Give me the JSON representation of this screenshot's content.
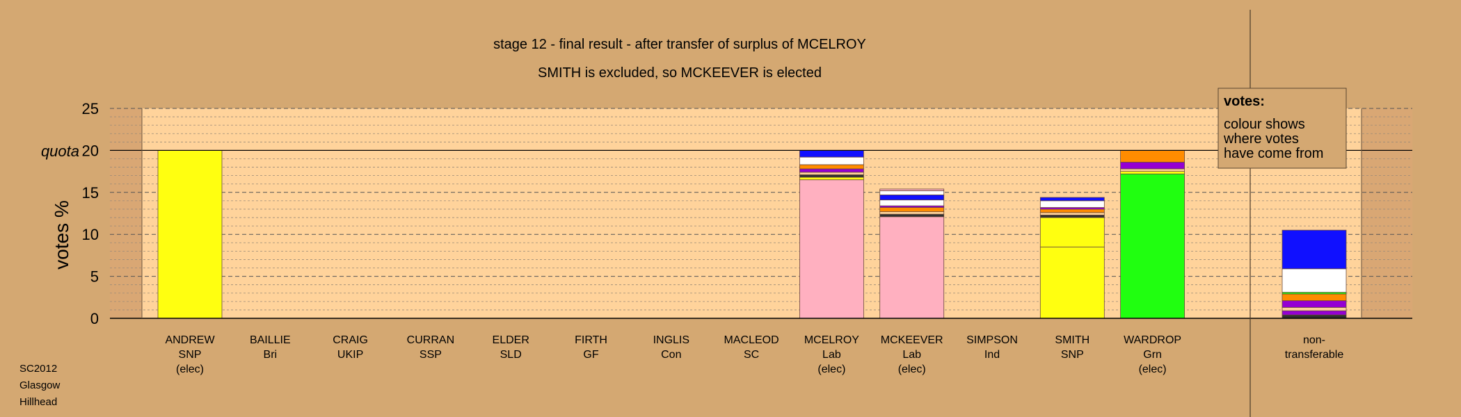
{
  "chart_data": {
    "type": "bar",
    "stacked": true,
    "title": "stage 12 - final result - after transfer of surplus of MCELROY",
    "subtitle": "SMITH is excluded, so MCKEEVER is elected",
    "ylabel": "votes %",
    "ylim": [
      0,
      25
    ],
    "yticks": [
      "0",
      "5",
      "10",
      "15",
      "20",
      "25"
    ],
    "quota_label": "quota",
    "quota_value": 20,
    "grid": true,
    "colors": {
      "background": "#d4a872",
      "plot_area": "#ffd39b",
      "Lab": "#ffb0c0",
      "SNP": "#ffff10",
      "Grn": "#20ff10",
      "Con": "#1010ff",
      "UKIP": "#ffffff",
      "SSP": "#ff8c00",
      "GF": "#9400d3",
      "SC": "#303030",
      "Bri": "#ffffff",
      "SLD": "#ffd39b",
      "Ind": "#c0c0c0"
    },
    "categories": [
      {
        "name": "ANDREW",
        "party": "SNP",
        "status": "(elec)",
        "segments": [
          {
            "from": "SNP",
            "value": 20.0
          }
        ]
      },
      {
        "name": "BAILLIE",
        "party": "Bri",
        "status": "",
        "segments": []
      },
      {
        "name": "CRAIG",
        "party": "UKIP",
        "status": "",
        "segments": []
      },
      {
        "name": "CURRAN",
        "party": "SSP",
        "status": "",
        "segments": []
      },
      {
        "name": "ELDER",
        "party": "SLD",
        "status": "",
        "segments": []
      },
      {
        "name": "FIRTH",
        "party": "GF",
        "status": "",
        "segments": []
      },
      {
        "name": "INGLIS",
        "party": "Con",
        "status": "",
        "segments": []
      },
      {
        "name": "MACLEOD",
        "party": "SC",
        "status": "",
        "segments": []
      },
      {
        "name": "MCELROY",
        "party": "Lab",
        "status": "(elec)",
        "segments": [
          {
            "from": "Lab",
            "value": 16.5
          },
          {
            "from": "SNP",
            "value": 0.3
          },
          {
            "from": "SC",
            "value": 0.3
          },
          {
            "from": "SLD",
            "value": 0.3
          },
          {
            "from": "GF",
            "value": 0.4
          },
          {
            "from": "SSP",
            "value": 0.5
          },
          {
            "from": "UKIP",
            "value": 0.9
          },
          {
            "from": "Con",
            "value": 0.8
          }
        ]
      },
      {
        "name": "MCKEEVER",
        "party": "Lab",
        "status": "(elec)",
        "segments": [
          {
            "from": "Lab",
            "value": 12.1
          },
          {
            "from": "SC",
            "value": 0.3
          },
          {
            "from": "SLD",
            "value": 0.3
          },
          {
            "from": "SSP",
            "value": 0.5
          },
          {
            "from": "GF",
            "value": 0.2
          },
          {
            "from": "UKIP",
            "value": 0.7
          },
          {
            "from": "Con",
            "value": 0.6
          },
          {
            "from": "Bri",
            "value": 0.5
          },
          {
            "from": "Lab",
            "value": 0.2
          }
        ]
      },
      {
        "name": "SIMPSON",
        "party": "Ind",
        "status": "",
        "segments": []
      },
      {
        "name": "SMITH",
        "party": "SNP",
        "status": "",
        "segments": [
          {
            "from": "SNP",
            "value": 8.5
          },
          {
            "from": "SNP",
            "value": 3.5
          },
          {
            "from": "SC",
            "value": 0.3
          },
          {
            "from": "SLD",
            "value": 0.3
          },
          {
            "from": "SSP",
            "value": 0.4
          },
          {
            "from": "GF",
            "value": 0.2
          },
          {
            "from": "UKIP",
            "value": 0.8
          },
          {
            "from": "Con",
            "value": 0.4
          }
        ]
      },
      {
        "name": "WARDROP",
        "party": "Grn",
        "status": "(elec)",
        "segments": [
          {
            "from": "Grn",
            "value": 17.2
          },
          {
            "from": "SNP",
            "value": 0.3
          },
          {
            "from": "SLD",
            "value": 0.3
          },
          {
            "from": "GF",
            "value": 0.8
          },
          {
            "from": "SSP",
            "value": 1.4
          }
        ]
      }
    ],
    "nontransferable": {
      "label_line1": "non-",
      "label_line2": "transferable",
      "segments": [
        {
          "from": "SC",
          "value": 0.4
        },
        {
          "from": "GF",
          "value": 0.5
        },
        {
          "from": "SLD",
          "value": 0.4
        },
        {
          "from": "GF",
          "value": 0.8
        },
        {
          "from": "SSP",
          "value": 0.8
        },
        {
          "from": "Grn",
          "value": 0.2
        },
        {
          "from": "UKIP",
          "value": 2.8
        },
        {
          "from": "Con",
          "value": 4.6
        }
      ]
    }
  },
  "legend": {
    "title": "votes:",
    "lines": [
      "colour shows",
      "where votes",
      "have come from"
    ]
  },
  "footer": {
    "lines": [
      "SC2012",
      "Glasgow",
      "Hillhead"
    ]
  }
}
